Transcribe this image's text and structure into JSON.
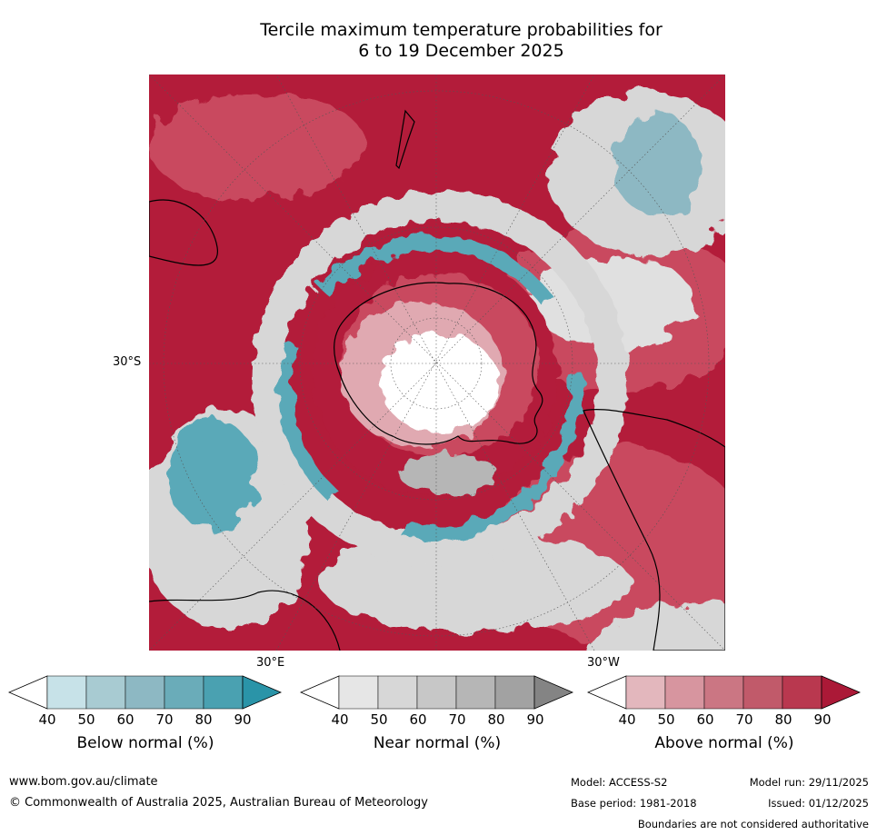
{
  "title_line1": "Tercile maximum temperature probabilities for",
  "title_line2": "6 to 19 December 2025",
  "map": {
    "projection": "south-polar-stereographic",
    "lat_label": "30°S",
    "lon_labels": [
      "30°E",
      "30°W"
    ],
    "colors": {
      "above_dark": "#b31c3a",
      "above_mid": "#c94a5f",
      "above_light": "#e0a9b1",
      "below_mid": "#5aa9b8",
      "below_light": "#c6e1e6",
      "near": "#d7d7d7",
      "coast": "#000000"
    }
  },
  "colorbars": [
    {
      "name": "below",
      "label": "Below normal (%)",
      "ticks": [
        "40",
        "50",
        "60",
        "70",
        "80",
        "90"
      ],
      "colors": [
        "#ffffff",
        "#c7e2e8",
        "#a8cbd2",
        "#8db8c3",
        "#6aacb9",
        "#4aa1b1",
        "#2a94a8"
      ]
    },
    {
      "name": "near",
      "label": "Near normal (%)",
      "ticks": [
        "40",
        "50",
        "60",
        "70",
        "80",
        "90"
      ],
      "colors": [
        "#ffffff",
        "#e6e6e6",
        "#d7d7d7",
        "#c7c7c7",
        "#b6b6b6",
        "#a2a2a2",
        "#848484"
      ]
    },
    {
      "name": "above",
      "label": "Above normal (%)",
      "ticks": [
        "40",
        "50",
        "60",
        "70",
        "80",
        "90"
      ],
      "colors": [
        "#ffffff",
        "#e3b7bd",
        "#d7959f",
        "#cb7683",
        "#c15a6a",
        "#b9384f",
        "#ab1937"
      ]
    }
  ],
  "footer": {
    "website": "www.bom.gov.au/climate",
    "copyright": "© Commonwealth of Australia 2025, Australian Bureau of Meteorology",
    "model": "Model: ACCESS-S2",
    "base_period": "Base period: 1981-2018",
    "model_run": "Model run: 29/11/2025",
    "issued": "Issued: 01/12/2025",
    "disclaimer": "Boundaries are not considered authoritative"
  }
}
